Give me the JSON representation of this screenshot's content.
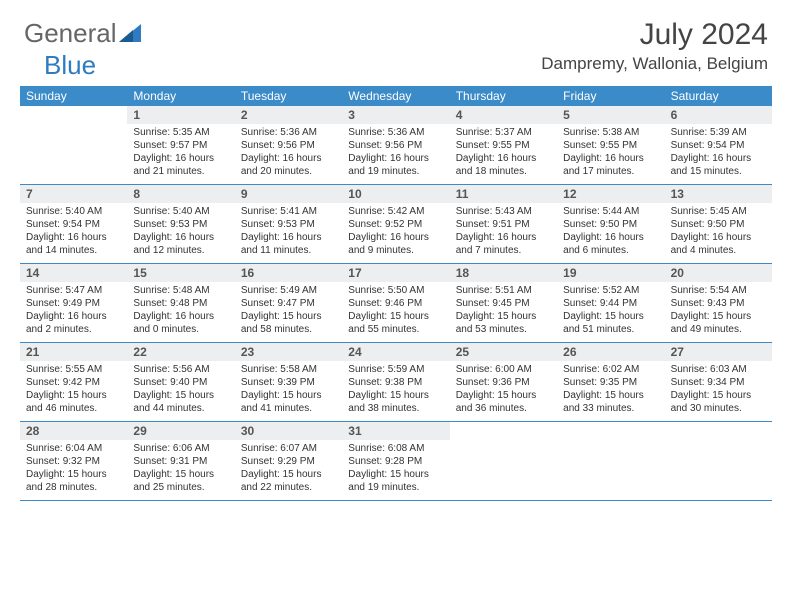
{
  "logo": {
    "part1": "General",
    "part2": "Blue"
  },
  "title": "July 2024",
  "location": "Dampremy, Wallonia, Belgium",
  "weekdays": [
    "Sunday",
    "Monday",
    "Tuesday",
    "Wednesday",
    "Thursday",
    "Friday",
    "Saturday"
  ],
  "colors": {
    "header_bg": "#3b8bc9",
    "daynum_bg": "#eceeef",
    "border": "#3b8bc9",
    "logo_accent": "#2f7bbf"
  },
  "weeks": [
    [
      {
        "n": "",
        "sr": "",
        "ss": "",
        "dl": ""
      },
      {
        "n": "1",
        "sr": "5:35 AM",
        "ss": "9:57 PM",
        "dl": "16 hours and 21 minutes."
      },
      {
        "n": "2",
        "sr": "5:36 AM",
        "ss": "9:56 PM",
        "dl": "16 hours and 20 minutes."
      },
      {
        "n": "3",
        "sr": "5:36 AM",
        "ss": "9:56 PM",
        "dl": "16 hours and 19 minutes."
      },
      {
        "n": "4",
        "sr": "5:37 AM",
        "ss": "9:55 PM",
        "dl": "16 hours and 18 minutes."
      },
      {
        "n": "5",
        "sr": "5:38 AM",
        "ss": "9:55 PM",
        "dl": "16 hours and 17 minutes."
      },
      {
        "n": "6",
        "sr": "5:39 AM",
        "ss": "9:54 PM",
        "dl": "16 hours and 15 minutes."
      }
    ],
    [
      {
        "n": "7",
        "sr": "5:40 AM",
        "ss": "9:54 PM",
        "dl": "16 hours and 14 minutes."
      },
      {
        "n": "8",
        "sr": "5:40 AM",
        "ss": "9:53 PM",
        "dl": "16 hours and 12 minutes."
      },
      {
        "n": "9",
        "sr": "5:41 AM",
        "ss": "9:53 PM",
        "dl": "16 hours and 11 minutes."
      },
      {
        "n": "10",
        "sr": "5:42 AM",
        "ss": "9:52 PM",
        "dl": "16 hours and 9 minutes."
      },
      {
        "n": "11",
        "sr": "5:43 AM",
        "ss": "9:51 PM",
        "dl": "16 hours and 7 minutes."
      },
      {
        "n": "12",
        "sr": "5:44 AM",
        "ss": "9:50 PM",
        "dl": "16 hours and 6 minutes."
      },
      {
        "n": "13",
        "sr": "5:45 AM",
        "ss": "9:50 PM",
        "dl": "16 hours and 4 minutes."
      }
    ],
    [
      {
        "n": "14",
        "sr": "5:47 AM",
        "ss": "9:49 PM",
        "dl": "16 hours and 2 minutes."
      },
      {
        "n": "15",
        "sr": "5:48 AM",
        "ss": "9:48 PM",
        "dl": "16 hours and 0 minutes."
      },
      {
        "n": "16",
        "sr": "5:49 AM",
        "ss": "9:47 PM",
        "dl": "15 hours and 58 minutes."
      },
      {
        "n": "17",
        "sr": "5:50 AM",
        "ss": "9:46 PM",
        "dl": "15 hours and 55 minutes."
      },
      {
        "n": "18",
        "sr": "5:51 AM",
        "ss": "9:45 PM",
        "dl": "15 hours and 53 minutes."
      },
      {
        "n": "19",
        "sr": "5:52 AM",
        "ss": "9:44 PM",
        "dl": "15 hours and 51 minutes."
      },
      {
        "n": "20",
        "sr": "5:54 AM",
        "ss": "9:43 PM",
        "dl": "15 hours and 49 minutes."
      }
    ],
    [
      {
        "n": "21",
        "sr": "5:55 AM",
        "ss": "9:42 PM",
        "dl": "15 hours and 46 minutes."
      },
      {
        "n": "22",
        "sr": "5:56 AM",
        "ss": "9:40 PM",
        "dl": "15 hours and 44 minutes."
      },
      {
        "n": "23",
        "sr": "5:58 AM",
        "ss": "9:39 PM",
        "dl": "15 hours and 41 minutes."
      },
      {
        "n": "24",
        "sr": "5:59 AM",
        "ss": "9:38 PM",
        "dl": "15 hours and 38 minutes."
      },
      {
        "n": "25",
        "sr": "6:00 AM",
        "ss": "9:36 PM",
        "dl": "15 hours and 36 minutes."
      },
      {
        "n": "26",
        "sr": "6:02 AM",
        "ss": "9:35 PM",
        "dl": "15 hours and 33 minutes."
      },
      {
        "n": "27",
        "sr": "6:03 AM",
        "ss": "9:34 PM",
        "dl": "15 hours and 30 minutes."
      }
    ],
    [
      {
        "n": "28",
        "sr": "6:04 AM",
        "ss": "9:32 PM",
        "dl": "15 hours and 28 minutes."
      },
      {
        "n": "29",
        "sr": "6:06 AM",
        "ss": "9:31 PM",
        "dl": "15 hours and 25 minutes."
      },
      {
        "n": "30",
        "sr": "6:07 AM",
        "ss": "9:29 PM",
        "dl": "15 hours and 22 minutes."
      },
      {
        "n": "31",
        "sr": "6:08 AM",
        "ss": "9:28 PM",
        "dl": "15 hours and 19 minutes."
      },
      {
        "n": "",
        "sr": "",
        "ss": "",
        "dl": ""
      },
      {
        "n": "",
        "sr": "",
        "ss": "",
        "dl": ""
      },
      {
        "n": "",
        "sr": "",
        "ss": "",
        "dl": ""
      }
    ]
  ]
}
